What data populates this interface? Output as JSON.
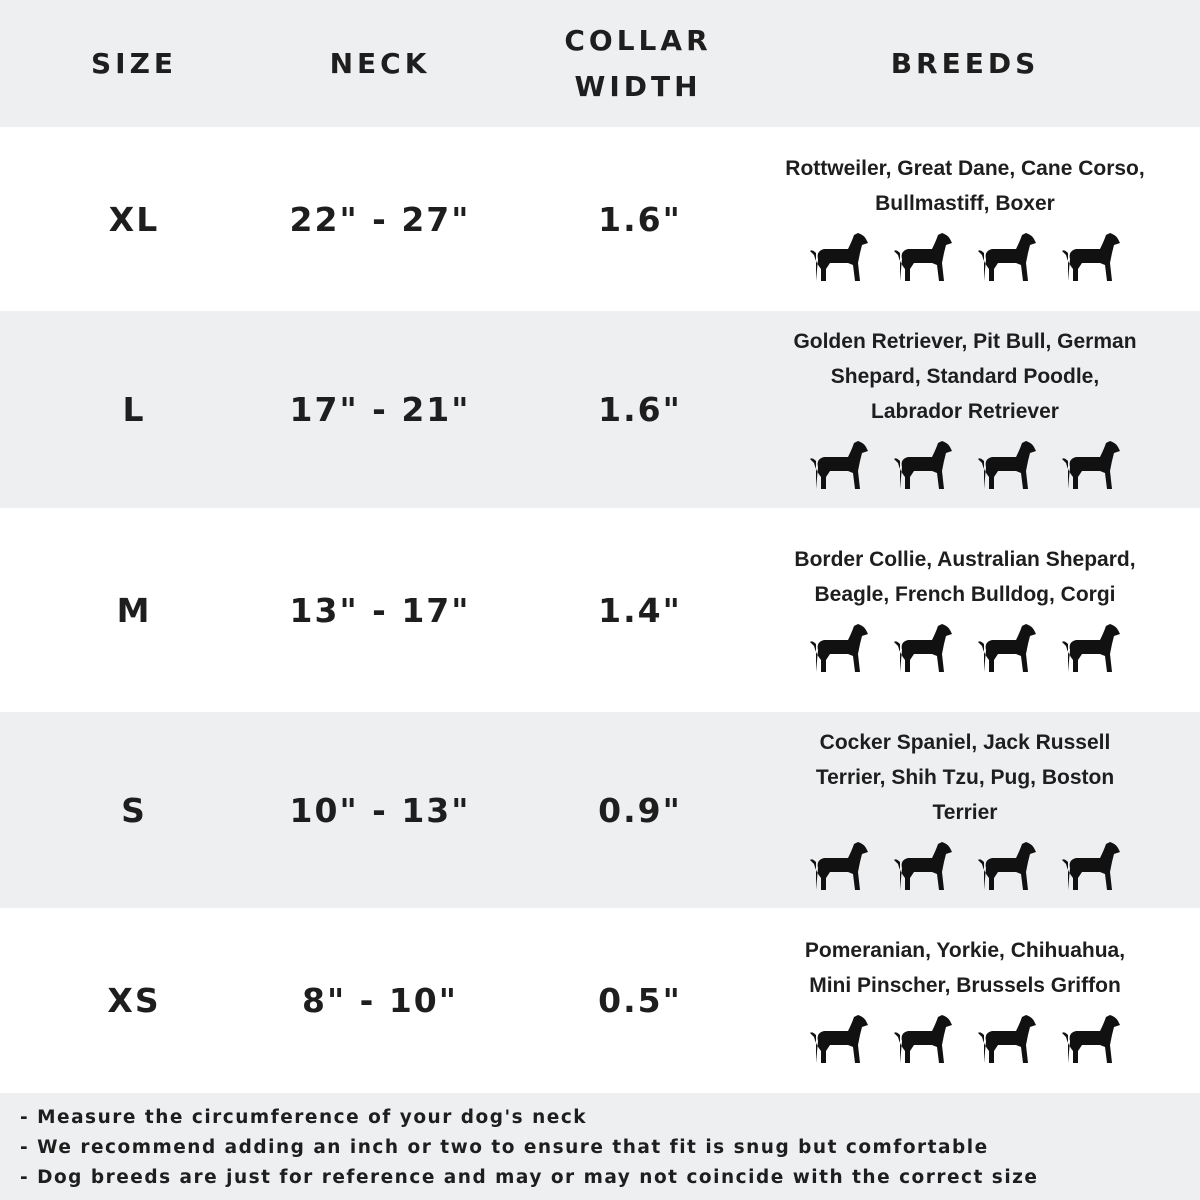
{
  "header": {
    "size": "SIZE",
    "neck": "NECK",
    "collar": "COLLAR WIDTH",
    "breeds": "BREEDS"
  },
  "rows": [
    {
      "size": "XL",
      "neck": "22\" - 27\"",
      "collar": "1.6\"",
      "breeds": "Rottweiler, Great Dane, Cane Corso, Bullmastiff, Boxer",
      "icons": [
        "rottweiler-icon",
        "great-dane-icon",
        "cane-corso-icon",
        "bullmastiff-icon"
      ]
    },
    {
      "size": "L",
      "neck": "17\" - 21\"",
      "collar": "1.6\"",
      "breeds": "Golden Retriever, Pit Bull, German Shepard, Standard Poodle, Labrador Retriever",
      "icons": [
        "golden-retriever-icon",
        "pit-bull-icon",
        "poodle-icon",
        "german-shepard-icon"
      ]
    },
    {
      "size": "M",
      "neck": "13\" - 17\"",
      "collar": "1.4\"",
      "breeds": "Border Collie, Australian Shepard, Beagle, French Bulldog, Corgi",
      "icons": [
        "border-collie-icon",
        "beagle-icon",
        "french-bulldog-icon",
        "corgi-icon"
      ]
    },
    {
      "size": "S",
      "neck": "10\" - 13\"",
      "collar": "0.9\"",
      "breeds": "Cocker Spaniel, Jack Russell Terrier, Shih Tzu, Pug, Boston Terrier",
      "icons": [
        "cocker-spaniel-icon",
        "jack-russell-icon",
        "shih-tzu-icon",
        "pug-icon"
      ]
    },
    {
      "size": "XS",
      "neck": "8\" - 10\"",
      "collar": "0.5\"",
      "breeds": "Pomeranian, Yorkie, Chihuahua, Mini Pinscher, Brussels Griffon",
      "icons": [
        "pomeranian-icon",
        "yorkie-icon",
        "chihuahua-icon",
        "mini-pinscher-icon"
      ]
    }
  ],
  "notes": [
    "- Measure the circumference of your dog's neck",
    "- We recommend adding an inch or two to ensure that fit is snug but comfortable",
    "- Dog breeds are just for reference and may or may not coincide with the correct size"
  ],
  "colors": {
    "band": "#eeeff1",
    "text": "#1e1e1e"
  }
}
